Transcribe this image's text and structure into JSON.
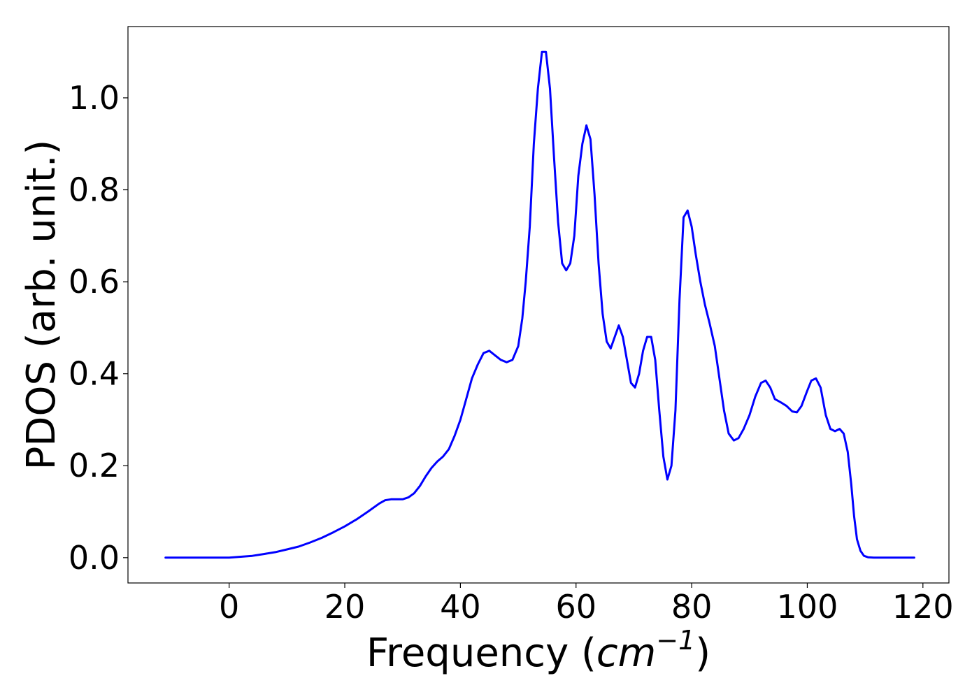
{
  "chart_data": {
    "type": "line",
    "title": "",
    "xlabel": {
      "text": "Frequency (",
      "unit_base": "cm",
      "unit_exponent": "−1",
      "suffix": ")"
    },
    "ylabel": "PDOS (arb. unit.)",
    "xlim": [
      -17.5,
      124.5
    ],
    "ylim": [
      -0.055,
      1.155
    ],
    "x_ticks": [
      {
        "value": 0,
        "label": "0"
      },
      {
        "value": 20,
        "label": "20"
      },
      {
        "value": 40,
        "label": "40"
      },
      {
        "value": 60,
        "label": "60"
      },
      {
        "value": 80,
        "label": "80"
      },
      {
        "value": 100,
        "label": "100"
      },
      {
        "value": 120,
        "label": "120"
      }
    ],
    "y_ticks": [
      {
        "value": 0.0,
        "label": "0.0"
      },
      {
        "value": 0.2,
        "label": "0.2"
      },
      {
        "value": 0.4,
        "label": "0.4"
      },
      {
        "value": 0.6,
        "label": "0.6"
      },
      {
        "value": 0.8,
        "label": "0.8"
      },
      {
        "value": 1.0,
        "label": "1.0"
      }
    ],
    "grid": false,
    "legend": "none",
    "series": [
      {
        "color": "#0000ff",
        "x": [
          -11,
          0,
          2,
          4,
          6,
          8,
          10,
          12,
          14,
          16,
          18,
          20,
          22,
          24,
          26,
          27,
          28,
          29,
          30,
          31,
          32,
          33,
          34,
          35,
          36,
          37,
          38,
          39,
          40,
          41,
          42,
          43,
          44,
          45,
          46,
          47,
          48,
          49,
          50,
          50.7,
          51.3,
          52,
          52.7,
          53.4,
          54.1,
          54.8,
          55.5,
          56.2,
          56.9,
          57.6,
          58.3,
          59,
          59.7,
          60.4,
          61.1,
          61.8,
          62.5,
          63.2,
          63.9,
          64.6,
          65.3,
          66,
          66.7,
          67.4,
          68.1,
          68.8,
          69.5,
          70.2,
          70.9,
          71.6,
          72.3,
          73,
          73.7,
          74.4,
          75.1,
          75.8,
          76.5,
          77.2,
          77.9,
          78.6,
          79.3,
          80,
          80.7,
          81.5,
          82.3,
          83.1,
          84,
          84.8,
          85.6,
          86.4,
          87.3,
          88.1,
          89,
          90,
          91,
          92,
          92.8,
          93.6,
          94.4,
          95.4,
          96.4,
          97.4,
          98.2,
          99,
          99.9,
          100.7,
          101.5,
          102.3,
          103.2,
          104,
          104.8,
          105.6,
          106.3,
          107,
          107.6,
          108.1,
          108.6,
          109.2,
          109.8,
          110.5,
          111.5,
          113,
          118.5
        ],
        "y": [
          0.0,
          0.0,
          0.002,
          0.004,
          0.008,
          0.012,
          0.018,
          0.024,
          0.033,
          0.043,
          0.055,
          0.068,
          0.083,
          0.1,
          0.118,
          0.125,
          0.127,
          0.127,
          0.127,
          0.131,
          0.14,
          0.156,
          0.177,
          0.195,
          0.209,
          0.22,
          0.236,
          0.265,
          0.3,
          0.345,
          0.39,
          0.42,
          0.445,
          0.45,
          0.44,
          0.43,
          0.425,
          0.43,
          0.46,
          0.52,
          0.6,
          0.72,
          0.9,
          1.02,
          1.1,
          1.1,
          1.02,
          0.87,
          0.73,
          0.64,
          0.625,
          0.64,
          0.7,
          0.83,
          0.9,
          0.94,
          0.91,
          0.79,
          0.64,
          0.53,
          0.47,
          0.455,
          0.48,
          0.505,
          0.48,
          0.43,
          0.38,
          0.37,
          0.4,
          0.45,
          0.48,
          0.48,
          0.43,
          0.32,
          0.22,
          0.17,
          0.2,
          0.32,
          0.56,
          0.74,
          0.755,
          0.72,
          0.66,
          0.6,
          0.55,
          0.51,
          0.46,
          0.39,
          0.32,
          0.27,
          0.255,
          0.26,
          0.28,
          0.31,
          0.35,
          0.38,
          0.385,
          0.37,
          0.345,
          0.338,
          0.33,
          0.318,
          0.316,
          0.33,
          0.36,
          0.385,
          0.39,
          0.37,
          0.31,
          0.28,
          0.275,
          0.28,
          0.27,
          0.23,
          0.16,
          0.09,
          0.04,
          0.015,
          0.004,
          0.001,
          0.0,
          0.0,
          0.0
        ]
      }
    ]
  }
}
